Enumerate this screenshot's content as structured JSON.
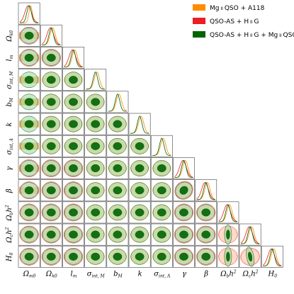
{
  "chart_data": {
    "type": "corner",
    "parameters": [
      {
        "key": "Om",
        "label": "Ω",
        "sub": "m0"
      },
      {
        "key": "Ok",
        "label": "Ω",
        "sub": "k0"
      },
      {
        "key": "lm",
        "label": "l",
        "sub": "m"
      },
      {
        "key": "sigM",
        "label": "σ",
        "sub": "int, M"
      },
      {
        "key": "bM",
        "label": "b",
        "sub": "M"
      },
      {
        "key": "k",
        "label": "k",
        "sub": ""
      },
      {
        "key": "sigA",
        "label": "σ",
        "sub": "int, A"
      },
      {
        "key": "gamma",
        "label": "γ",
        "sub": ""
      },
      {
        "key": "beta",
        "label": "β",
        "sub": ""
      },
      {
        "key": "Obh2",
        "label": "Ω",
        "sub": "b",
        "sup": "h",
        "pow": "2"
      },
      {
        "key": "Och2",
        "label": "Ω",
        "sub": "c",
        "sup": "h",
        "pow": "2"
      },
      {
        "key": "H0",
        "label": "H",
        "sub": "0"
      }
    ],
    "series": [
      {
        "name": "Mg ii QSO + A118",
        "color": "#ff8c00",
        "params": [
          0,
          1,
          2,
          3,
          4,
          5,
          6,
          7,
          8,
          9,
          10,
          11
        ]
      },
      {
        "name": "QSO-AS + H iiG",
        "color": "#ee1c24",
        "params": [
          0,
          1,
          2,
          7,
          8,
          9,
          10,
          11
        ]
      },
      {
        "name": "QSO-AS + H iiG + Mg ii QSO + A118",
        "color": "#006400",
        "params": [
          0,
          1,
          2,
          3,
          4,
          5,
          6,
          7,
          8,
          9,
          10,
          11
        ]
      }
    ],
    "legend": [
      {
        "main": "Mg",
        "small": "ii",
        "rest": " QSO + A118",
        "color": "#ff8c00"
      },
      {
        "main": "QSO-AS + H",
        "small": "ii",
        "rest": "G",
        "color": "#ee1c24"
      },
      {
        "main": "QSO-AS + H",
        "small": "ii",
        "rest": "G + Mg",
        "small2": "ii",
        "rest2": " QSO + A118",
        "color": "#006400"
      }
    ],
    "legend_position": "top-right"
  }
}
